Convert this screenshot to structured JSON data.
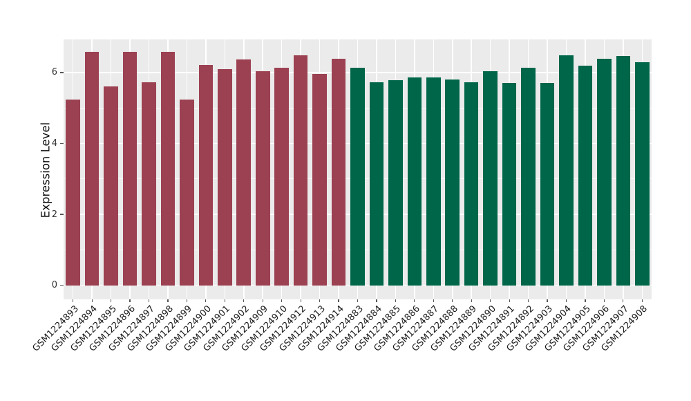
{
  "chart_data": {
    "type": "bar",
    "title": "",
    "xlabel": "",
    "ylabel": "Expression Level",
    "legend_position": "none",
    "grid": true,
    "panel_background": "#EBEBEB",
    "grid_color": "#FFFFFF",
    "tick_color": "#555555",
    "tick_label_color": "#333333",
    "x_label_color": "#1A1A1A",
    "group_colors": {
      "group_a": "#9C4152",
      "group_b": "#006649"
    },
    "yticks": [
      0,
      2,
      4,
      6
    ],
    "yticks_minor": [
      1,
      3,
      5
    ],
    "ylim": [
      -0.4,
      6.95
    ],
    "categories": [
      "GSM1224893",
      "GSM1224894",
      "GSM1224895",
      "GSM1224896",
      "GSM1224897",
      "GSM1224898",
      "GSM1224899",
      "GSM1224900",
      "GSM1224901",
      "GSM1224902",
      "GSM1224909",
      "GSM1224910",
      "GSM1224912",
      "GSM1224913",
      "GSM1224914",
      "GSM1224883",
      "GSM1224884",
      "GSM1224885",
      "GSM1224886",
      "GSM1224887",
      "GSM1224888",
      "GSM1224889",
      "GSM1224890",
      "GSM1224891",
      "GSM1224892",
      "GSM1224903",
      "GSM1224904",
      "GSM1224905",
      "GSM1224906",
      "GSM1224907",
      "GSM1224908"
    ],
    "values": [
      5.23,
      6.58,
      5.6,
      6.58,
      5.72,
      6.59,
      5.23,
      6.21,
      6.1,
      6.36,
      6.03,
      6.13,
      6.49,
      5.96,
      6.38,
      6.14,
      5.73,
      5.78,
      5.87,
      5.86,
      5.81,
      5.73,
      6.03,
      5.7,
      6.13,
      5.7,
      6.49,
      6.2,
      6.38,
      6.46,
      6.3
    ],
    "bar_colors": [
      "#9C4152",
      "#9C4152",
      "#9C4152",
      "#9C4152",
      "#9C4152",
      "#9C4152",
      "#9C4152",
      "#9C4152",
      "#9C4152",
      "#9C4152",
      "#9C4152",
      "#9C4152",
      "#9C4152",
      "#9C4152",
      "#9C4152",
      "#006649",
      "#006649",
      "#006649",
      "#006649",
      "#006649",
      "#006649",
      "#006649",
      "#006649",
      "#006649",
      "#006649",
      "#006649",
      "#006649",
      "#006649",
      "#006649",
      "#006649",
      "#006649"
    ]
  }
}
